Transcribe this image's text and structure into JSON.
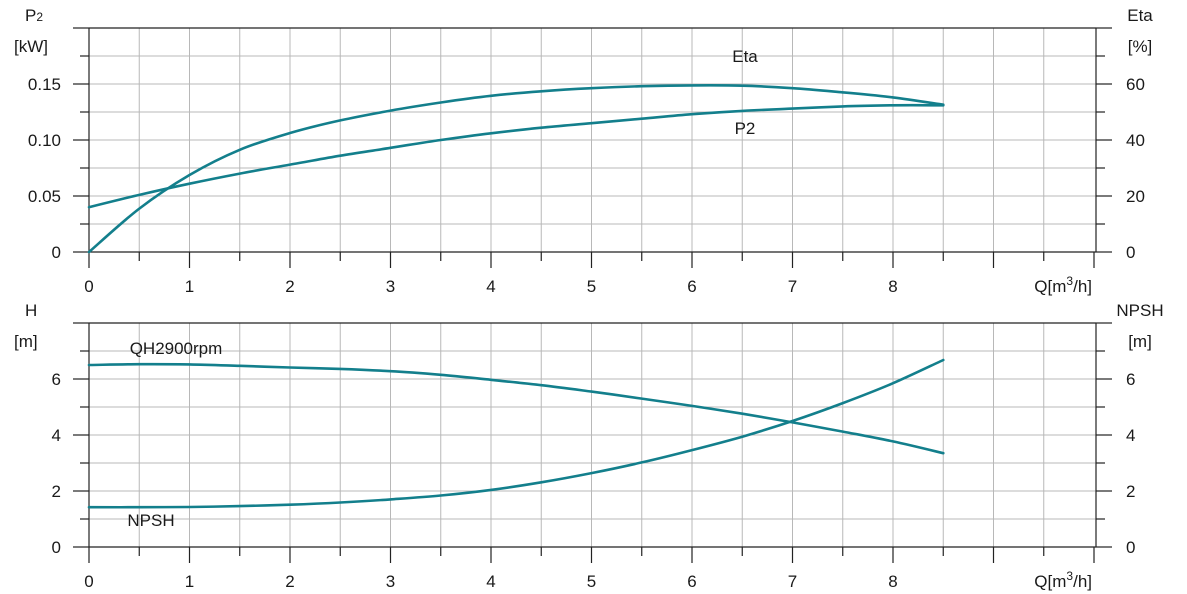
{
  "colors": {
    "curve": "#137f8c",
    "grid": "#b8b8b8",
    "axis": "#222222"
  },
  "chart_data": [
    {
      "type": "line",
      "name": "power-efficiency",
      "xlabel": "Q[m³/h]",
      "x_ticks": [
        "0",
        "1",
        "2",
        "3",
        "4",
        "5",
        "6",
        "7",
        "8"
      ],
      "xlim": [
        0,
        10
      ],
      "ylabel_left": {
        "main": "P",
        "sub": "2",
        "unit": "[kW]"
      },
      "ylim_left": [
        0,
        0.2
      ],
      "y_ticks_left": [
        {
          "value": 0,
          "label": "0"
        },
        {
          "value": 0.05,
          "label": "0.05"
        },
        {
          "value": 0.1,
          "label": "0.10"
        },
        {
          "value": 0.15,
          "label": "0.15"
        }
      ],
      "ylabel_right": {
        "main": "Eta",
        "unit": "[%]"
      },
      "ylim_right": [
        0,
        80
      ],
      "y_ticks_right": [
        {
          "value": 0,
          "label": "0"
        },
        {
          "value": 20,
          "label": "20"
        },
        {
          "value": 40,
          "label": "40"
        },
        {
          "value": 60,
          "label": "60"
        }
      ],
      "grid": true,
      "series": [
        {
          "name": "Eta",
          "axis": "right",
          "x": [
            0,
            0.5,
            1,
            1.5,
            2,
            2.5,
            3,
            3.5,
            4,
            4.5,
            5,
            5.5,
            6,
            6.5,
            7,
            7.5,
            8,
            8.5
          ],
          "y": [
            0,
            15.5,
            27.5,
            36.5,
            42.5,
            47,
            50.5,
            53.4,
            55.8,
            57.4,
            58.5,
            59.2,
            59.5,
            59.4,
            58.5,
            57,
            55.2,
            52.6
          ],
          "label": "Eta"
        },
        {
          "name": "P2",
          "axis": "left",
          "x": [
            0,
            0.5,
            1,
            1.5,
            2,
            2.5,
            3,
            3.5,
            4,
            4.5,
            5,
            5.5,
            6,
            6.5,
            7,
            7.5,
            8,
            8.5
          ],
          "y": [
            0.04,
            0.051,
            0.061,
            0.07,
            0.078,
            0.086,
            0.093,
            0.1,
            0.106,
            0.111,
            0.115,
            0.119,
            0.123,
            0.126,
            0.128,
            0.13,
            0.131,
            0.131
          ],
          "label": "P2"
        }
      ]
    },
    {
      "type": "line",
      "name": "head-npsh",
      "xlabel": "Q[m³/h]",
      "x_ticks": [
        "0",
        "1",
        "2",
        "3",
        "4",
        "5",
        "6",
        "7",
        "8"
      ],
      "xlim": [
        0,
        10
      ],
      "ylabel_left": {
        "main": "H",
        "unit": "[m]"
      },
      "ylim_left": [
        0,
        8
      ],
      "y_ticks_left": [
        {
          "value": 0,
          "label": "0"
        },
        {
          "value": 2,
          "label": "2"
        },
        {
          "value": 4,
          "label": "4"
        },
        {
          "value": 6,
          "label": "6"
        }
      ],
      "ylabel_right": {
        "main": "NPSH",
        "unit": "[m]"
      },
      "ylim_right": [
        0,
        8
      ],
      "y_ticks_right": [
        {
          "value": 0,
          "label": "0"
        },
        {
          "value": 2,
          "label": "2"
        },
        {
          "value": 4,
          "label": "4"
        },
        {
          "value": 6,
          "label": "6"
        }
      ],
      "grid": true,
      "series": [
        {
          "name": "QH2900rpm",
          "axis": "left",
          "x": [
            0,
            0.5,
            1,
            1.5,
            2,
            2.5,
            3,
            3.5,
            4,
            4.5,
            5,
            5.5,
            6,
            6.5,
            7,
            7.5,
            8,
            8.5
          ],
          "y": [
            6.5,
            6.53,
            6.52,
            6.47,
            6.41,
            6.36,
            6.28,
            6.15,
            5.97,
            5.78,
            5.55,
            5.3,
            5.04,
            4.76,
            4.45,
            4.12,
            3.77,
            3.35
          ],
          "label": "QH2900rpm"
        },
        {
          "name": "NPSH",
          "axis": "right",
          "x": [
            0,
            0.5,
            1,
            1.5,
            2,
            2.5,
            3,
            3.5,
            4,
            4.5,
            5,
            5.5,
            6,
            6.5,
            7,
            7.5,
            8,
            8.5
          ],
          "y": [
            1.42,
            1.42,
            1.43,
            1.46,
            1.51,
            1.59,
            1.7,
            1.84,
            2.04,
            2.31,
            2.64,
            3.02,
            3.46,
            3.94,
            4.5,
            5.14,
            5.85,
            6.68
          ],
          "label": "NPSH"
        }
      ]
    }
  ]
}
